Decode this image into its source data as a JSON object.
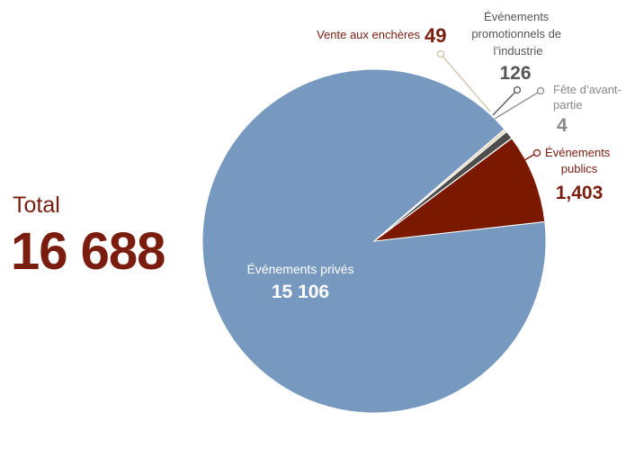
{
  "total": {
    "label": "Total",
    "value": "16 688"
  },
  "chart_data": {
    "type": "pie",
    "slices": [
      {
        "label": "Événements privés",
        "value": 15106,
        "value_text": "15 106",
        "color": "#7899bf"
      },
      {
        "label": "Événements publics",
        "value": 1403,
        "value_text": "1,403",
        "color": "#7a1800"
      },
      {
        "label": "Fête d’avant-partie",
        "value": 4,
        "value_text": "4",
        "color": "#a6a6a6"
      },
      {
        "label": "Événements promotionnels de l’industrie",
        "value": 126,
        "value_text": "126",
        "color": "#4d4d4d"
      },
      {
        "label": "Vente aux enchères",
        "value": 49,
        "value_text": "49",
        "color": "#e8d9bf"
      }
    ],
    "label_colors": {
      "dark_red": "#7a1c0e",
      "dark_gray": "#555555",
      "gray": "#888888",
      "white": "#ffffff"
    }
  }
}
